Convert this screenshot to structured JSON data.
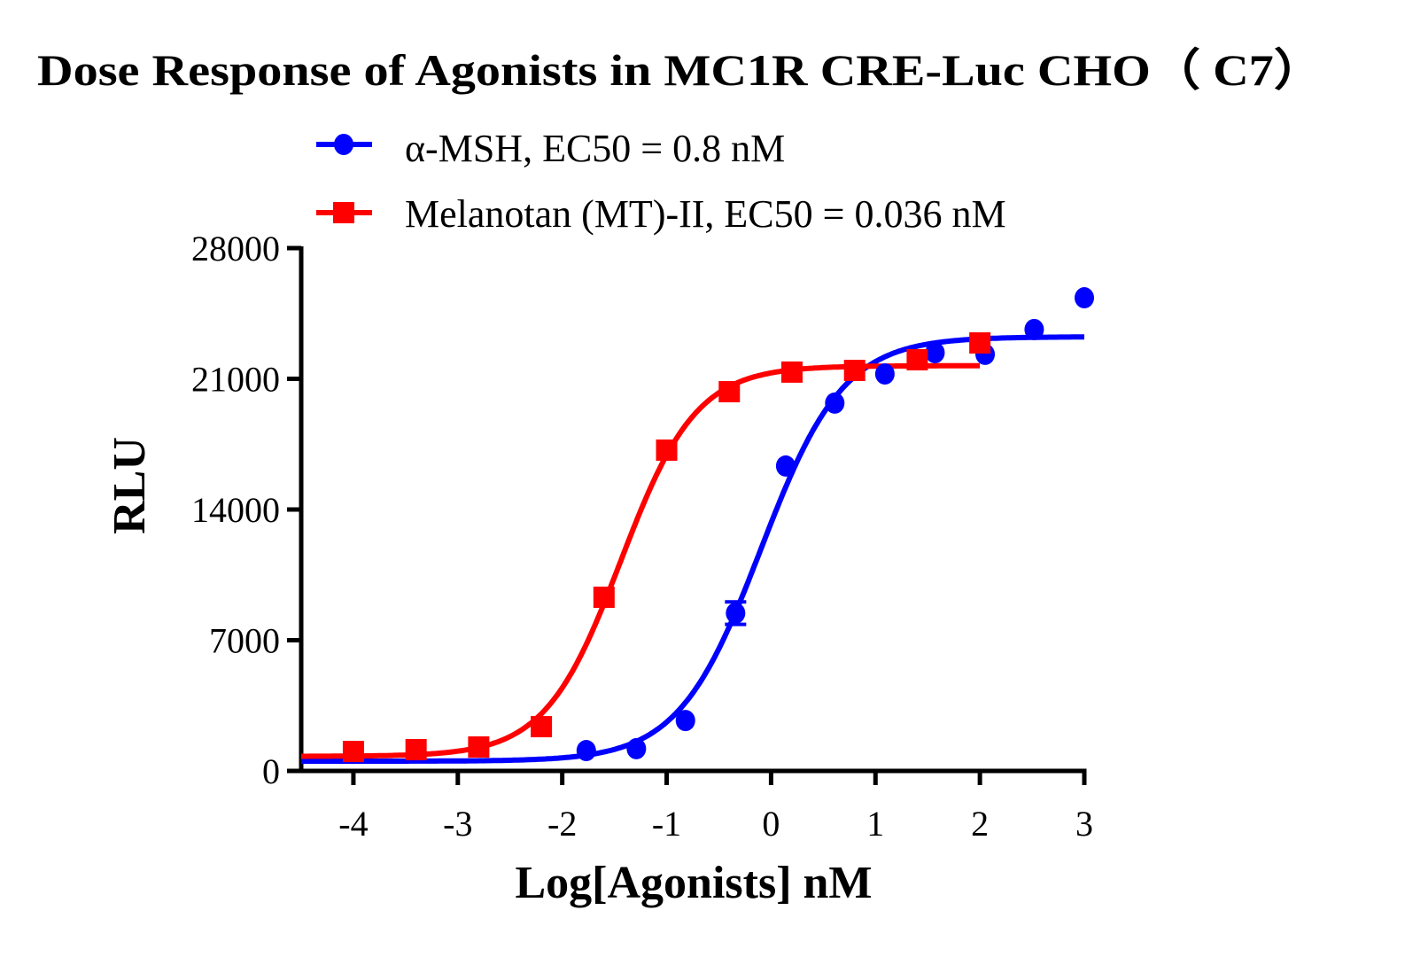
{
  "chart_data": {
    "type": "scatter",
    "title": "Dose Response of Agonists in MC1R CRE-Luc CHO（ C7）",
    "xlabel": "Log[Agonists] nM",
    "ylabel": "RLU",
    "xlim": [
      -4.5,
      3
    ],
    "ylim": [
      0,
      28000
    ],
    "xticks": [
      -4,
      -3,
      -2,
      -1,
      0,
      1,
      2,
      3
    ],
    "xtick_labels": [
      "-4",
      "-3",
      "-2",
      "-1",
      "0",
      "1",
      "2",
      "3"
    ],
    "yticks": [
      0,
      7000,
      14000,
      21000,
      28000
    ],
    "ytick_labels": [
      "0",
      "7000",
      "14000",
      "21000",
      "28000"
    ],
    "grid": false,
    "legend_position": "top",
    "series": [
      {
        "name": "α-MSH, EC50 = 0.8 nM",
        "color": "#0000ff",
        "marker": "circle",
        "x": [
          -1.77,
          -1.29,
          -0.82,
          -0.34,
          0.14,
          0.61,
          1.09,
          1.57,
          2.05,
          2.52,
          3.0
        ],
        "y": [
          1090,
          1190,
          2700,
          8450,
          16330,
          19700,
          21260,
          22400,
          22310,
          23640,
          25340
        ],
        "error": [
          0,
          0,
          0,
          600,
          0,
          0,
          0,
          0,
          0,
          0,
          0
        ],
        "fit": {
          "bottom": 520,
          "top": 23250,
          "logEC50": -0.097,
          "hill": 1.1,
          "x_range": [
            -4.5,
            3
          ]
        }
      },
      {
        "name": "Melanotan (MT)-II, EC50 = 0.036 nM",
        "color": "#ff0000",
        "marker": "square",
        "x": [
          -4.0,
          -3.4,
          -2.8,
          -2.2,
          -1.6,
          -1.0,
          -0.4,
          0.2,
          0.8,
          1.4,
          2.0
        ],
        "y": [
          1040,
          1140,
          1280,
          2370,
          9300,
          17180,
          20310,
          21360,
          21450,
          22020,
          22920
        ],
        "error": [
          0,
          0,
          0,
          0,
          0,
          0,
          0,
          0,
          0,
          0,
          0
        ],
        "fit": {
          "bottom": 780,
          "top": 21700,
          "logEC50": -1.44,
          "hill": 1.2,
          "x_range": [
            -4.5,
            2
          ]
        }
      }
    ]
  }
}
